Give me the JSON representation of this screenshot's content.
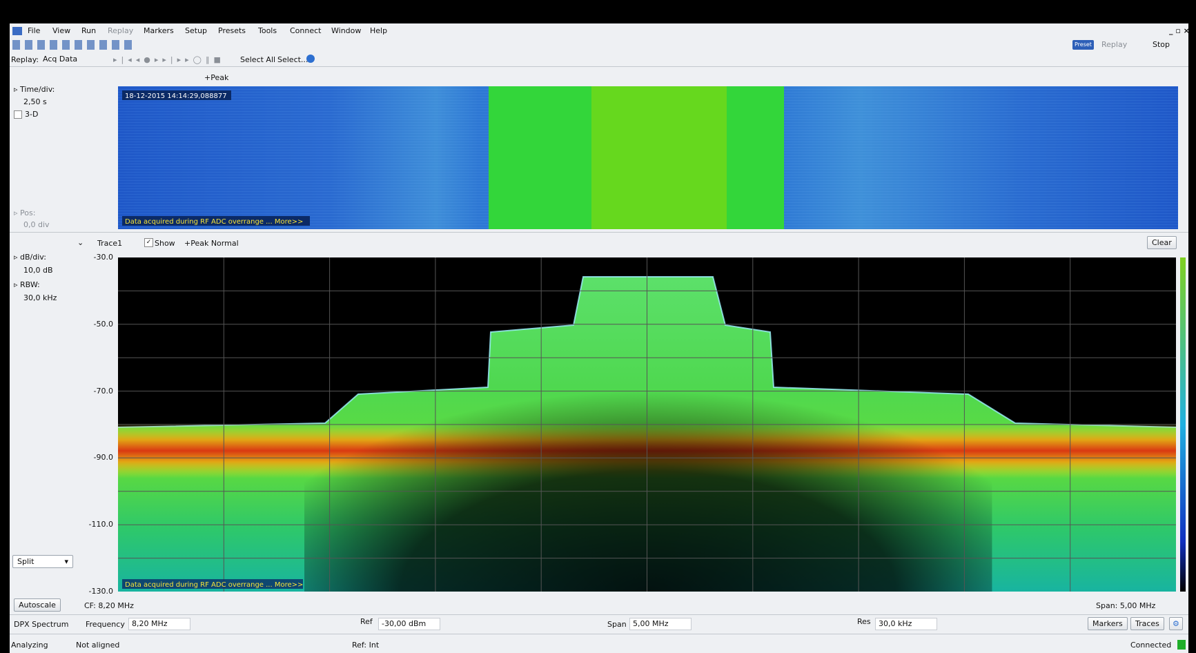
{
  "menu": [
    "File",
    "View",
    "Run",
    "Replay",
    "Markers",
    "Setup",
    "Presets",
    "Tools",
    "Connect",
    "Window",
    "Help"
  ],
  "toolbar": {
    "preset": "Preset",
    "replay": "Replay",
    "stop": "Stop"
  },
  "replay_bar": {
    "label": "Replay:",
    "source": "Acq Data",
    "select_all": "Select All",
    "select": "Select..."
  },
  "spectrogram": {
    "title": "+Peak",
    "time_div_label": "Time/div:",
    "time_div": "2,50 s",
    "three_d": "3-D",
    "pos_label": "Pos:",
    "pos": "0,0 div",
    "timestamp": "18-12-2015 14:14:29,088877",
    "warning": "Data acquired during RF ADC overrange ... More>>"
  },
  "spectrum": {
    "trace": "Trace1",
    "show": "Show",
    "detection": "+Peak Normal",
    "clear": "Clear",
    "db_div_label": "dB/div:",
    "db_div": "10,0 dB",
    "rbw_label": "RBW:",
    "rbw": "30,0 kHz",
    "y_labels": [
      "-30.0",
      "-50.0",
      "-70.0",
      "-90.0",
      "-110.0",
      "-130.0"
    ],
    "warning": "Data acquired during RF ADC overrange ... More>>",
    "view": "Split",
    "autoscale": "Autoscale",
    "cf": "CF: 8,20 MHz",
    "span": "Span: 5,00 MHz"
  },
  "settings_bar": {
    "display": "DPX Spectrum",
    "frequency_label": "Frequency",
    "frequency": "8,20 MHz",
    "ref_label": "Ref",
    "ref": "-30,00 dBm",
    "span_label": "Span",
    "span": "5,00 MHz",
    "res_label": "Res",
    "res": "30,0 kHz",
    "markers": "Markers",
    "traces": "Traces"
  },
  "status_bar": {
    "state": "Analyzing",
    "alignment": "Not aligned",
    "reference": "Ref: Int",
    "connection": "Connected"
  }
}
